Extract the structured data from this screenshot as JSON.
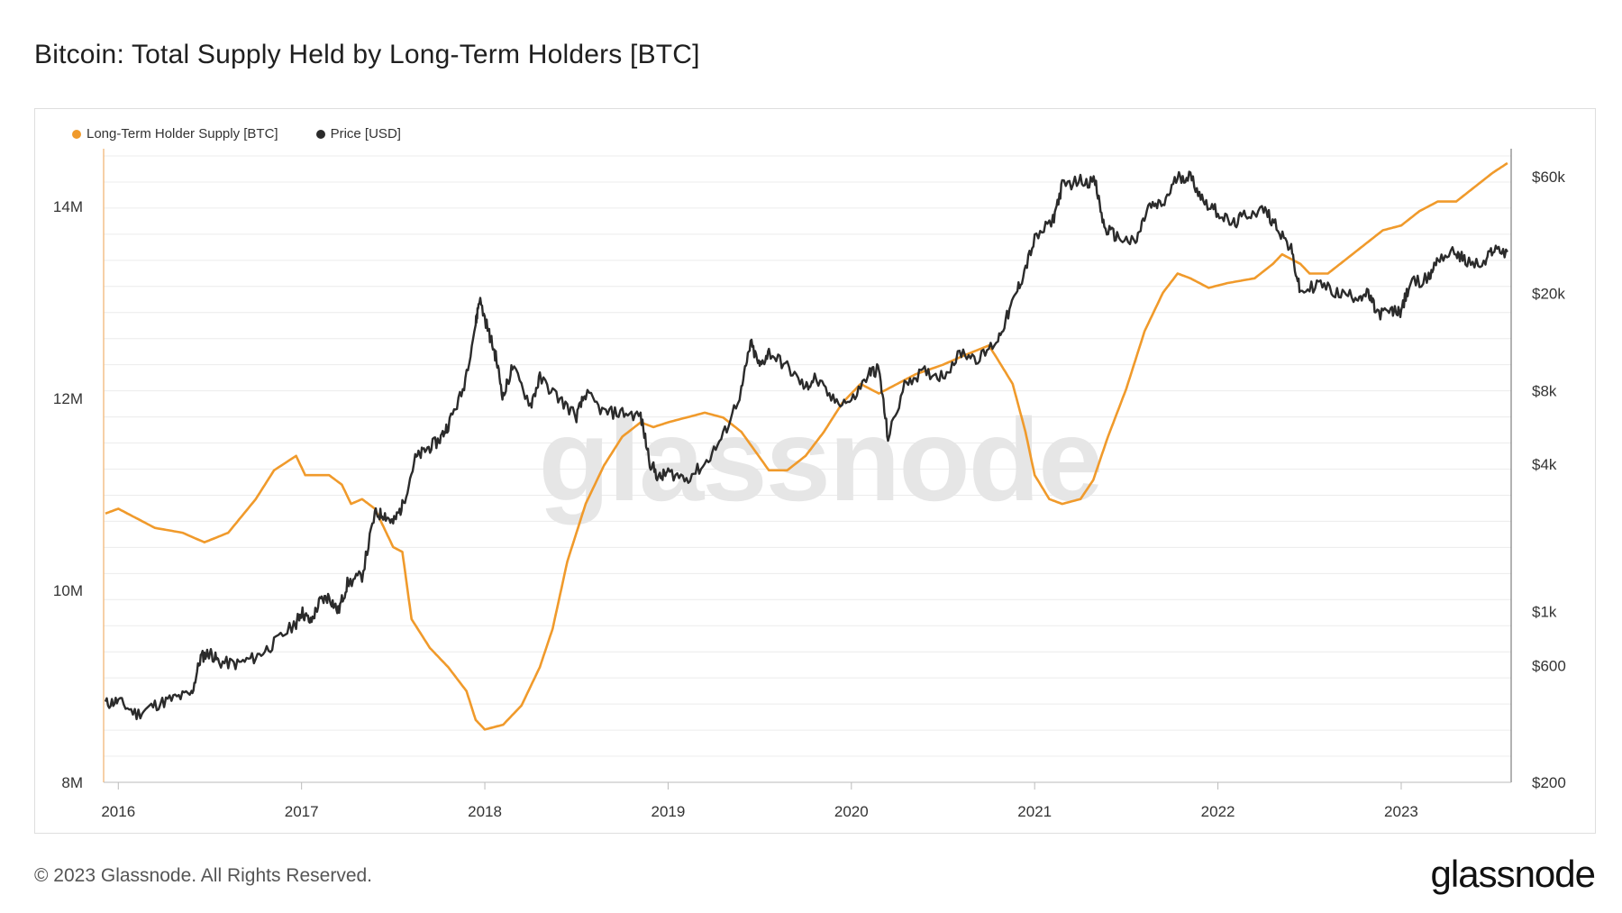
{
  "title": "Bitcoin: Total Supply Held by Long-Term Holders [BTC]",
  "footer": "© 2023 Glassnode. All Rights Reserved.",
  "brand": "glassnode",
  "watermark": "glassnode",
  "colors": {
    "lth": "#f09a2b",
    "price": "#2b2b2b",
    "grid": "#ececec",
    "axis": "#bbbbbb"
  },
  "chart_data": {
    "type": "line",
    "title": "Bitcoin: Total Supply Held by Long-Term Holders [BTC]",
    "x_range": [
      2015.92,
      2023.6
    ],
    "x_ticks": [
      "2016",
      "2017",
      "2018",
      "2019",
      "2020",
      "2021",
      "2022",
      "2023"
    ],
    "y_left": {
      "scale": "linear",
      "range": [
        8000000,
        14600000
      ],
      "ticks": [
        {
          "v": 8000000,
          "label": "8M"
        },
        {
          "v": 10000000,
          "label": "10M"
        },
        {
          "v": 12000000,
          "label": "12M"
        },
        {
          "v": 14000000,
          "label": "14M"
        }
      ]
    },
    "y_right": {
      "scale": "log",
      "range": [
        200,
        78000
      ],
      "ticks": [
        {
          "v": 200,
          "label": "$200"
        },
        {
          "v": 600,
          "label": "$600"
        },
        {
          "v": 1000,
          "label": "$1k"
        },
        {
          "v": 4000,
          "label": "$4k"
        },
        {
          "v": 8000,
          "label": "$8k"
        },
        {
          "v": 20000,
          "label": "$20k"
        },
        {
          "v": 60000,
          "label": "$60k"
        }
      ]
    },
    "legend_position": "top-left",
    "grid": true,
    "series": [
      {
        "name": "Long-Term Holder Supply [BTC]",
        "axis": "left",
        "points": [
          [
            2015.93,
            10800000
          ],
          [
            2016.0,
            10850000
          ],
          [
            2016.1,
            10750000
          ],
          [
            2016.2,
            10650000
          ],
          [
            2016.35,
            10600000
          ],
          [
            2016.47,
            10500000
          ],
          [
            2016.6,
            10600000
          ],
          [
            2016.75,
            10950000
          ],
          [
            2016.85,
            11250000
          ],
          [
            2016.97,
            11400000
          ],
          [
            2017.02,
            11200000
          ],
          [
            2017.15,
            11200000
          ],
          [
            2017.22,
            11100000
          ],
          [
            2017.27,
            10900000
          ],
          [
            2017.33,
            10950000
          ],
          [
            2017.4,
            10850000
          ],
          [
            2017.45,
            10650000
          ],
          [
            2017.5,
            10450000
          ],
          [
            2017.55,
            10400000
          ],
          [
            2017.6,
            9700000
          ],
          [
            2017.7,
            9400000
          ],
          [
            2017.8,
            9200000
          ],
          [
            2017.9,
            8950000
          ],
          [
            2017.95,
            8650000
          ],
          [
            2018.0,
            8550000
          ],
          [
            2018.1,
            8600000
          ],
          [
            2018.2,
            8800000
          ],
          [
            2018.3,
            9200000
          ],
          [
            2018.37,
            9600000
          ],
          [
            2018.45,
            10300000
          ],
          [
            2018.55,
            10900000
          ],
          [
            2018.65,
            11300000
          ],
          [
            2018.75,
            11600000
          ],
          [
            2018.85,
            11750000
          ],
          [
            2018.92,
            11700000
          ],
          [
            2019.0,
            11750000
          ],
          [
            2019.1,
            11800000
          ],
          [
            2019.2,
            11850000
          ],
          [
            2019.3,
            11800000
          ],
          [
            2019.4,
            11650000
          ],
          [
            2019.55,
            11250000
          ],
          [
            2019.65,
            11250000
          ],
          [
            2019.75,
            11400000
          ],
          [
            2019.85,
            11650000
          ],
          [
            2019.95,
            11950000
          ],
          [
            2020.05,
            12150000
          ],
          [
            2020.15,
            12050000
          ],
          [
            2020.25,
            12150000
          ],
          [
            2020.35,
            12250000
          ],
          [
            2020.5,
            12350000
          ],
          [
            2020.62,
            12450000
          ],
          [
            2020.75,
            12550000
          ],
          [
            2020.8,
            12400000
          ],
          [
            2020.88,
            12150000
          ],
          [
            2020.95,
            11650000
          ],
          [
            2021.0,
            11200000
          ],
          [
            2021.08,
            10950000
          ],
          [
            2021.15,
            10900000
          ],
          [
            2021.25,
            10950000
          ],
          [
            2021.32,
            11150000
          ],
          [
            2021.4,
            11600000
          ],
          [
            2021.5,
            12100000
          ],
          [
            2021.6,
            12700000
          ],
          [
            2021.7,
            13100000
          ],
          [
            2021.78,
            13300000
          ],
          [
            2021.85,
            13250000
          ],
          [
            2021.95,
            13150000
          ],
          [
            2022.05,
            13200000
          ],
          [
            2022.2,
            13250000
          ],
          [
            2022.3,
            13400000
          ],
          [
            2022.35,
            13500000
          ],
          [
            2022.45,
            13400000
          ],
          [
            2022.5,
            13300000
          ],
          [
            2022.6,
            13300000
          ],
          [
            2022.7,
            13450000
          ],
          [
            2022.8,
            13600000
          ],
          [
            2022.9,
            13750000
          ],
          [
            2023.0,
            13800000
          ],
          [
            2023.1,
            13950000
          ],
          [
            2023.2,
            14050000
          ],
          [
            2023.3,
            14050000
          ],
          [
            2023.4,
            14200000
          ],
          [
            2023.5,
            14350000
          ],
          [
            2023.58,
            14450000
          ]
        ]
      },
      {
        "name": "Price [USD]",
        "axis": "right",
        "points": [
          [
            2015.93,
            420
          ],
          [
            2016.0,
            430
          ],
          [
            2016.1,
            380
          ],
          [
            2016.2,
            415
          ],
          [
            2016.3,
            440
          ],
          [
            2016.4,
            460
          ],
          [
            2016.45,
            650
          ],
          [
            2016.5,
            680
          ],
          [
            2016.55,
            620
          ],
          [
            2016.65,
            610
          ],
          [
            2016.75,
            650
          ],
          [
            2016.85,
            740
          ],
          [
            2016.97,
            900
          ],
          [
            2017.0,
            1000
          ],
          [
            2017.05,
            900
          ],
          [
            2017.1,
            1100
          ],
          [
            2017.15,
            1150
          ],
          [
            2017.2,
            1000
          ],
          [
            2017.25,
            1300
          ],
          [
            2017.33,
            1400
          ],
          [
            2017.4,
            2500
          ],
          [
            2017.45,
            2500
          ],
          [
            2017.5,
            2300
          ],
          [
            2017.55,
            2700
          ],
          [
            2017.62,
            4200
          ],
          [
            2017.68,
            4600
          ],
          [
            2017.75,
            5000
          ],
          [
            2017.8,
            5800
          ],
          [
            2017.88,
            8000
          ],
          [
            2017.95,
            15000
          ],
          [
            2017.97,
            19000
          ],
          [
            2018.02,
            14000
          ],
          [
            2018.06,
            11000
          ],
          [
            2018.1,
            7500
          ],
          [
            2018.15,
            10000
          ],
          [
            2018.25,
            7000
          ],
          [
            2018.3,
            9000
          ],
          [
            2018.4,
            7500
          ],
          [
            2018.5,
            6300
          ],
          [
            2018.55,
            7800
          ],
          [
            2018.65,
            6500
          ],
          [
            2018.75,
            6500
          ],
          [
            2018.85,
            6300
          ],
          [
            2018.9,
            4100
          ],
          [
            2018.95,
            3500
          ],
          [
            2019.0,
            3700
          ],
          [
            2019.1,
            3500
          ],
          [
            2019.2,
            4000
          ],
          [
            2019.3,
            5200
          ],
          [
            2019.4,
            8000
          ],
          [
            2019.45,
            12500
          ],
          [
            2019.5,
            10000
          ],
          [
            2019.55,
            11500
          ],
          [
            2019.65,
            10000
          ],
          [
            2019.75,
            8200
          ],
          [
            2019.8,
            9000
          ],
          [
            2019.9,
            7300
          ],
          [
            2020.0,
            7200
          ],
          [
            2020.1,
            9500
          ],
          [
            2020.15,
            9800
          ],
          [
            2020.2,
            5100
          ],
          [
            2020.3,
            8800
          ],
          [
            2020.4,
            9500
          ],
          [
            2020.5,
            9200
          ],
          [
            2020.6,
            11500
          ],
          [
            2020.7,
            10800
          ],
          [
            2020.8,
            13000
          ],
          [
            2020.87,
            17500
          ],
          [
            2020.93,
            23000
          ],
          [
            2021.0,
            33000
          ],
          [
            2021.1,
            40000
          ],
          [
            2021.15,
            55000
          ],
          [
            2021.25,
            58000
          ],
          [
            2021.33,
            57000
          ],
          [
            2021.38,
            37000
          ],
          [
            2021.45,
            34000
          ],
          [
            2021.55,
            32000
          ],
          [
            2021.62,
            45000
          ],
          [
            2021.7,
            46000
          ],
          [
            2021.78,
            60000
          ],
          [
            2021.85,
            60000
          ],
          [
            2021.92,
            48000
          ],
          [
            2022.0,
            43000
          ],
          [
            2022.08,
            38000
          ],
          [
            2022.15,
            42000
          ],
          [
            2022.25,
            44000
          ],
          [
            2022.32,
            38000
          ],
          [
            2022.4,
            30000
          ],
          [
            2022.45,
            20000
          ],
          [
            2022.55,
            22000
          ],
          [
            2022.65,
            20000
          ],
          [
            2022.75,
            19500
          ],
          [
            2022.82,
            19800
          ],
          [
            2022.87,
            16500
          ],
          [
            2022.95,
            16800
          ],
          [
            2023.0,
            17000
          ],
          [
            2023.05,
            22000
          ],
          [
            2023.15,
            23000
          ],
          [
            2023.2,
            28000
          ],
          [
            2023.3,
            29500
          ],
          [
            2023.35,
            27000
          ],
          [
            2023.45,
            26000
          ],
          [
            2023.5,
            30500
          ],
          [
            2023.58,
            29500
          ]
        ]
      }
    ]
  }
}
